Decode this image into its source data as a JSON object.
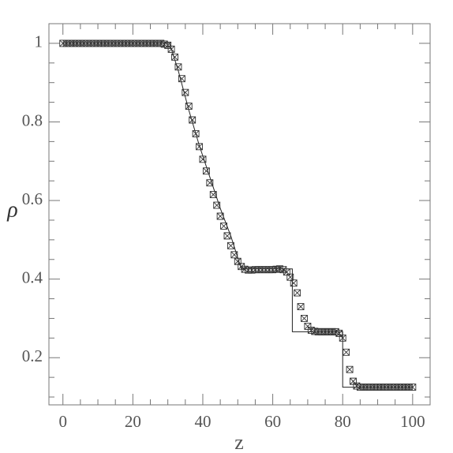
{
  "chart_data": {
    "type": "line",
    "xlabel": "z",
    "ylabel": "ρ",
    "xlim": [
      -4,
      105
    ],
    "ylim": [
      0.08,
      1.05
    ],
    "xticks": [
      0,
      20,
      40,
      60,
      80,
      100
    ],
    "yticks": [
      0.2,
      0.4,
      0.6,
      0.8,
      1
    ],
    "xminorticks": [
      5,
      10,
      15,
      25,
      30,
      35,
      45,
      50,
      55,
      65,
      70,
      75,
      85,
      90,
      95,
      105
    ],
    "yminorticks": [
      0.1,
      0.15,
      0.25,
      0.3,
      0.35,
      0.45,
      0.5,
      0.55,
      0.65,
      0.7,
      0.75,
      0.85,
      0.9,
      0.95,
      1.05
    ],
    "series": [
      {
        "type": "line",
        "color": "#222222",
        "x": [
          0,
          30.5,
          33,
          36,
          39,
          42,
          45,
          48,
          51,
          65.6,
          65.6,
          80,
          80,
          100
        ],
        "values": [
          1,
          1,
          0.93,
          0.83,
          0.74,
          0.66,
          0.58,
          0.51,
          0.426,
          0.426,
          0.266,
          0.266,
          0.125,
          0.125
        ]
      },
      {
        "type": "scatter",
        "color": "#333333",
        "x": [
          0,
          1,
          2,
          3,
          4,
          5,
          6,
          7,
          8,
          9,
          10,
          11,
          12,
          13,
          14,
          15,
          16,
          17,
          18,
          19,
          20,
          21,
          22,
          23,
          24,
          25,
          26,
          27,
          28,
          29,
          30,
          31,
          32,
          33,
          34,
          35,
          36,
          37,
          38,
          39,
          40,
          41,
          42,
          43,
          44,
          45,
          46,
          47,
          48,
          49,
          50,
          51,
          52,
          53,
          54,
          55,
          56,
          57,
          58,
          59,
          60,
          61,
          62,
          63,
          64,
          65,
          66,
          67,
          68,
          69,
          70,
          71,
          72,
          73,
          74,
          75,
          76,
          77,
          78,
          79,
          80,
          81,
          82,
          83,
          84,
          85,
          86,
          87,
          88,
          89,
          90,
          91,
          92,
          93,
          94,
          95,
          96,
          97,
          98,
          99,
          100
        ],
        "values": [
          1,
          1,
          1,
          1,
          1,
          1,
          1,
          1,
          1,
          1,
          1,
          1,
          1,
          1,
          1,
          1,
          1,
          1,
          1,
          1,
          1,
          1,
          1,
          1,
          1,
          1,
          1,
          1,
          1,
          0.998,
          0.995,
          0.985,
          0.965,
          0.94,
          0.91,
          0.875,
          0.84,
          0.805,
          0.77,
          0.737,
          0.705,
          0.675,
          0.645,
          0.615,
          0.588,
          0.56,
          0.535,
          0.51,
          0.485,
          0.462,
          0.445,
          0.432,
          0.425,
          0.423,
          0.423,
          0.424,
          0.424,
          0.424,
          0.424,
          0.424,
          0.424,
          0.425,
          0.426,
          0.424,
          0.418,
          0.405,
          0.39,
          0.365,
          0.33,
          0.3,
          0.28,
          0.27,
          0.267,
          0.266,
          0.266,
          0.266,
          0.266,
          0.266,
          0.266,
          0.262,
          0.25,
          0.214,
          0.17,
          0.14,
          0.128,
          0.125,
          0.125,
          0.125,
          0.125,
          0.125,
          0.125,
          0.125,
          0.125,
          0.125,
          0.125,
          0.125,
          0.125,
          0.125,
          0.125,
          0.125,
          0.125
        ]
      }
    ]
  }
}
